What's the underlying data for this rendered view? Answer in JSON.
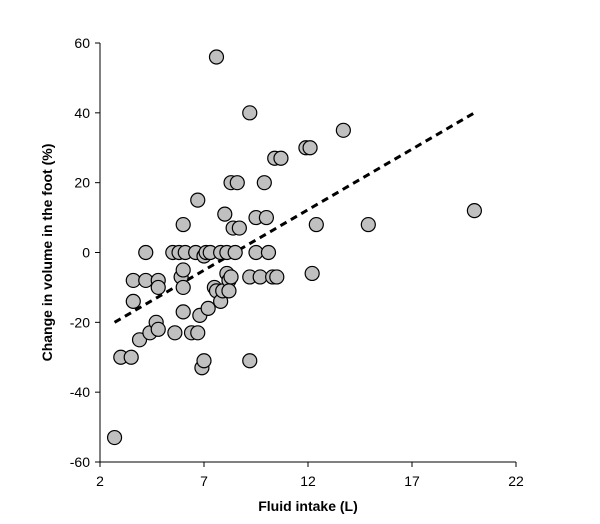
{
  "chart_data": {
    "type": "scatter",
    "xlabel": "Fluid intake (L)",
    "ylabel": "Change in volume in the foot (%)",
    "xlim": [
      2,
      22
    ],
    "ylim": [
      -60,
      60
    ],
    "xticks": [
      2,
      7,
      12,
      17,
      22
    ],
    "yticks": [
      60,
      40,
      20,
      0,
      -20,
      -40,
      -60
    ],
    "grid": false,
    "legend": "none",
    "marker_fill": "#c0c0c0",
    "marker_stroke": "#000000",
    "points": [
      {
        "x": 2.7,
        "y": -53
      },
      {
        "x": 3.0,
        "y": -30
      },
      {
        "x": 3.5,
        "y": -30
      },
      {
        "x": 3.6,
        "y": -8
      },
      {
        "x": 3.6,
        "y": -14
      },
      {
        "x": 3.9,
        "y": -25
      },
      {
        "x": 4.2,
        "y": 0
      },
      {
        "x": 4.2,
        "y": -8
      },
      {
        "x": 4.4,
        "y": -23
      },
      {
        "x": 4.7,
        "y": -20
      },
      {
        "x": 4.8,
        "y": -22
      },
      {
        "x": 4.8,
        "y": -8
      },
      {
        "x": 4.8,
        "y": -10
      },
      {
        "x": 5.5,
        "y": 0
      },
      {
        "x": 5.6,
        "y": -23
      },
      {
        "x": 5.8,
        "y": 0
      },
      {
        "x": 5.9,
        "y": -7
      },
      {
        "x": 6.0,
        "y": 8
      },
      {
        "x": 6.0,
        "y": -10
      },
      {
        "x": 6.0,
        "y": -5
      },
      {
        "x": 6.0,
        "y": -17
      },
      {
        "x": 6.1,
        "y": 0
      },
      {
        "x": 6.4,
        "y": -23
      },
      {
        "x": 6.6,
        "y": 0
      },
      {
        "x": 6.7,
        "y": 15
      },
      {
        "x": 6.7,
        "y": -23
      },
      {
        "x": 6.8,
        "y": -18
      },
      {
        "x": 6.9,
        "y": -33
      },
      {
        "x": 7.0,
        "y": -31
      },
      {
        "x": 7.0,
        "y": -1
      },
      {
        "x": 7.1,
        "y": 0
      },
      {
        "x": 7.2,
        "y": -16
      },
      {
        "x": 7.3,
        "y": 0
      },
      {
        "x": 7.5,
        "y": -10
      },
      {
        "x": 7.6,
        "y": -11
      },
      {
        "x": 7.6,
        "y": 56
      },
      {
        "x": 7.8,
        "y": -14
      },
      {
        "x": 7.8,
        "y": 0
      },
      {
        "x": 7.9,
        "y": -11
      },
      {
        "x": 8.0,
        "y": 11
      },
      {
        "x": 8.1,
        "y": -6
      },
      {
        "x": 8.1,
        "y": 0
      },
      {
        "x": 8.2,
        "y": -8
      },
      {
        "x": 8.2,
        "y": -11
      },
      {
        "x": 8.3,
        "y": -7
      },
      {
        "x": 8.3,
        "y": 20
      },
      {
        "x": 8.4,
        "y": 7
      },
      {
        "x": 8.5,
        "y": 0
      },
      {
        "x": 8.6,
        "y": 20
      },
      {
        "x": 8.7,
        "y": 7
      },
      {
        "x": 9.2,
        "y": -31
      },
      {
        "x": 9.2,
        "y": -7
      },
      {
        "x": 9.2,
        "y": 40
      },
      {
        "x": 9.5,
        "y": 10
      },
      {
        "x": 9.5,
        "y": 0
      },
      {
        "x": 9.7,
        "y": -7
      },
      {
        "x": 9.9,
        "y": 20
      },
      {
        "x": 10.0,
        "y": 10
      },
      {
        "x": 10.1,
        "y": 0
      },
      {
        "x": 10.3,
        "y": -7
      },
      {
        "x": 10.4,
        "y": 27
      },
      {
        "x": 10.5,
        "y": -7
      },
      {
        "x": 10.7,
        "y": 27
      },
      {
        "x": 11.9,
        "y": 30
      },
      {
        "x": 12.1,
        "y": 30
      },
      {
        "x": 12.2,
        "y": -6
      },
      {
        "x": 12.4,
        "y": 8
      },
      {
        "x": 13.7,
        "y": 35
      },
      {
        "x": 14.9,
        "y": 8
      },
      {
        "x": 20.0,
        "y": 12
      }
    ],
    "trendline": {
      "style": "dashed",
      "x": [
        2.7,
        20.0
      ],
      "y": [
        -20,
        40
      ]
    }
  }
}
